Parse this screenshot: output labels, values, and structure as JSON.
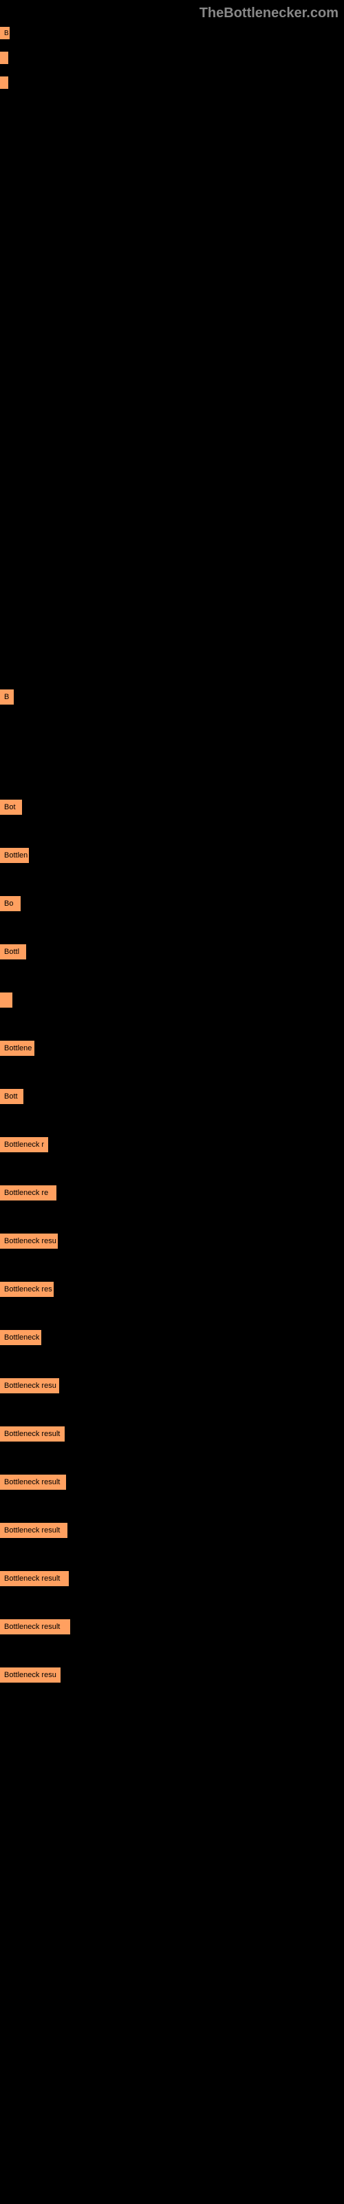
{
  "header": {
    "logo_text": "TheBottlenecker.com"
  },
  "top_bars": [
    {
      "label": "B"
    },
    {
      "label": ""
    },
    {
      "label": ""
    }
  ],
  "related": [
    {
      "label": "B"
    },
    {
      "label": "Bot"
    },
    {
      "label": "Bottlen"
    },
    {
      "label": "Bo"
    },
    {
      "label": "Bottl"
    },
    {
      "label": ""
    },
    {
      "label": "Bottlene"
    },
    {
      "label": "Bott"
    },
    {
      "label": "Bottleneck r"
    },
    {
      "label": "Bottleneck re"
    },
    {
      "label": "Bottleneck resu"
    },
    {
      "label": "Bottleneck res"
    },
    {
      "label": "Bottleneck"
    },
    {
      "label": "Bottleneck resu"
    },
    {
      "label": "Bottleneck result"
    },
    {
      "label": "Bottleneck result"
    },
    {
      "label": "Bottleneck result"
    },
    {
      "label": "Bottleneck result"
    },
    {
      "label": "Bottleneck result"
    },
    {
      "label": "Bottleneck resu"
    }
  ],
  "colors": {
    "bar": "#ffa060",
    "background": "#000000",
    "logo": "#888888"
  }
}
